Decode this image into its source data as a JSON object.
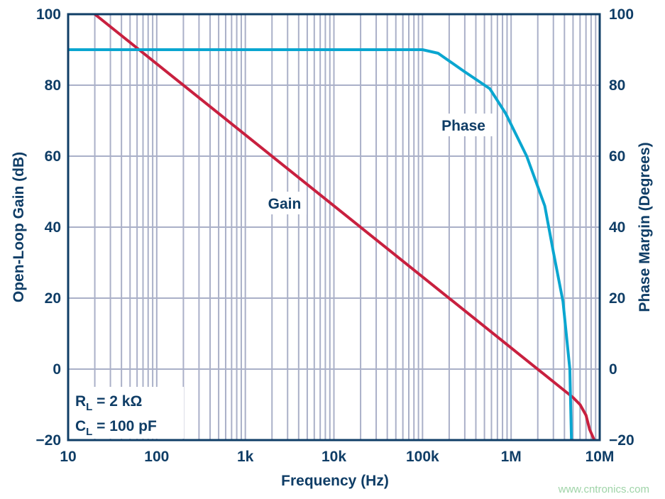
{
  "chart_data": {
    "type": "line",
    "xlabel": "Frequency (Hz)",
    "ylabel": "Open-Loop Gain (dB)",
    "y2label": "Phase Margin (Degrees)",
    "xscale": "log",
    "xlim": [
      10,
      10000000
    ],
    "ylim": [
      -20,
      100
    ],
    "y2lim": [
      -20,
      100
    ],
    "grid": true,
    "x_ticks": [
      10,
      100,
      1000,
      10000,
      100000,
      1000000,
      10000000
    ],
    "x_tick_labels": [
      "10",
      "100",
      "1k",
      "10k",
      "100k",
      "1M",
      "10M"
    ],
    "y_ticks": [
      -20,
      0,
      20,
      40,
      60,
      80,
      100
    ],
    "y_tick_labels": [
      "−20",
      "0",
      "20",
      "40",
      "60",
      "80",
      "100"
    ],
    "y2_tick_labels": [
      "−20",
      "0",
      "20",
      "40",
      "60",
      "80",
      "100"
    ],
    "series": [
      {
        "name": "Gain",
        "axis": "left",
        "color": "#c8203f",
        "x": [
          20,
          5000000,
          6000000,
          7000000,
          7700000,
          8700000
        ],
        "y": [
          100,
          -8,
          -10,
          -13,
          -17,
          -20
        ]
      },
      {
        "name": "Phase",
        "axis": "right",
        "color": "#0aa6d0",
        "x": [
          10,
          100000,
          150000,
          290000,
          575000,
          870000,
          1500000,
          2400000,
          3000000,
          3850000,
          4600000,
          4800000
        ],
        "y": [
          90,
          90,
          89,
          84,
          79,
          72,
          60,
          46,
          33,
          19,
          0,
          -20
        ]
      }
    ],
    "annotations": {
      "rl": {
        "main": "R",
        "sub": "L",
        "rest": " = 2 kΩ"
      },
      "cl": {
        "main": "C",
        "sub": "L",
        "rest": " = 100 pF"
      }
    }
  },
  "watermark": "www.cntronics.com",
  "colors": {
    "text": "#0f3d66",
    "grid": "#aab0c8",
    "border": "#0f3d66"
  }
}
